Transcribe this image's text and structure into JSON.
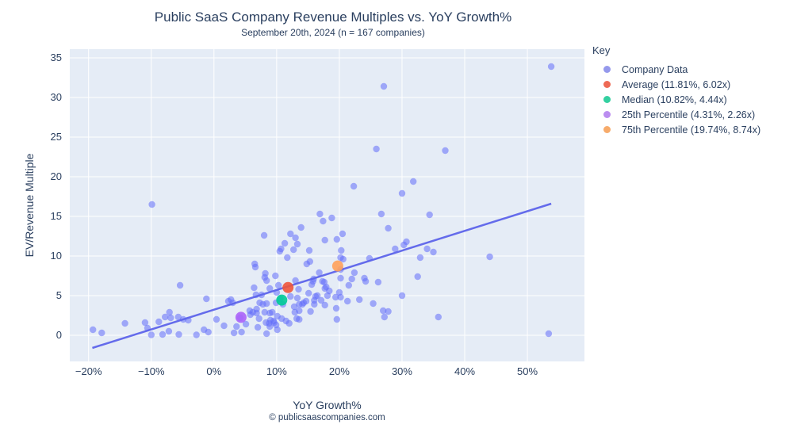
{
  "title": "Public SaaS Company Revenue Multiples vs. YoY Growth%",
  "subtitle": "September 20th, 2024 (n = 167 companies)",
  "footer": "© publicsaascompanies.com",
  "legend": {
    "title": "Key",
    "items": [
      {
        "label": "Company Data",
        "color": "#9599ec"
      },
      {
        "label": "Average (11.81%, 6.02x)",
        "color": "#ee6a55"
      },
      {
        "label": "Median (10.82%, 4.44x)",
        "color": "#34d0a0"
      },
      {
        "label": "25th Percentile (4.31%, 2.26x)",
        "color": "#bb8df0"
      },
      {
        "label": "75th Percentile (19.74%, 8.74x)",
        "color": "#f7ab6b"
      }
    ]
  },
  "chart_data": {
    "type": "scatter",
    "title": "Public SaaS Company Revenue Multiples vs. YoY Growth%",
    "subtitle": "September 20th, 2024 (n = 167 companies)",
    "xlabel": "YoY Growth%",
    "ylabel": "EV/Revenue Multiple",
    "xlim": [
      -23.0,
      59.1
    ],
    "ylim": [
      -3.3,
      36.1
    ],
    "grid": true,
    "plot_bg": "#E5ECF6",
    "grid_color": "#ffffff",
    "point_color": "#636EFA",
    "point_opacity": 0.55,
    "trend_color": "#5d64ea",
    "x_ticks": [
      {
        "value": -20,
        "label": "−20%"
      },
      {
        "value": -10,
        "label": "−10%"
      },
      {
        "value": 0,
        "label": "0%"
      },
      {
        "value": 10,
        "label": "10%"
      },
      {
        "value": 20,
        "label": "20%"
      },
      {
        "value": 30,
        "label": "30%"
      },
      {
        "value": 40,
        "label": "40%"
      },
      {
        "value": 50,
        "label": "50%"
      }
    ],
    "y_ticks": [
      {
        "value": 0,
        "label": "0"
      },
      {
        "value": 5,
        "label": "5"
      },
      {
        "value": 10,
        "label": "10"
      },
      {
        "value": 15,
        "label": "15"
      },
      {
        "value": 20,
        "label": "20"
      },
      {
        "value": 25,
        "label": "25"
      },
      {
        "value": 30,
        "label": "30"
      },
      {
        "value": 35,
        "label": "35"
      }
    ],
    "trend_line": {
      "x1": -19.4,
      "y1": -1.6,
      "x2": 53.8,
      "y2": 16.6
    },
    "special_points": [
      {
        "name": "average",
        "x": 11.81,
        "y": 6.02,
        "color": "#EF553B"
      },
      {
        "name": "median",
        "x": 10.82,
        "y": 4.44,
        "color": "#00CC96"
      },
      {
        "name": "25th-percentile",
        "x": 4.31,
        "y": 2.26,
        "color": "#AB63FA"
      },
      {
        "name": "75th-percentile",
        "x": 19.74,
        "y": 8.74,
        "color": "#FFA15A"
      }
    ],
    "points": [
      [
        -19.3,
        0.7
      ],
      [
        -17.9,
        0.3
      ],
      [
        -14.2,
        1.5
      ],
      [
        -11.0,
        1.6
      ],
      [
        -10.6,
        0.9
      ],
      [
        -10.0,
        0.05
      ],
      [
        -9.9,
        16.5
      ],
      [
        -8.8,
        1.7
      ],
      [
        -8.2,
        0.1
      ],
      [
        -7.8,
        2.3
      ],
      [
        -7.2,
        0.5
      ],
      [
        -7.1,
        2.9
      ],
      [
        -6.9,
        2.2
      ],
      [
        -5.7,
        2.3
      ],
      [
        -5.6,
        0.1
      ],
      [
        -5.4,
        6.3
      ],
      [
        -4.9,
        2.0
      ],
      [
        -4.1,
        1.9
      ],
      [
        -2.8,
        0.05
      ],
      [
        -1.6,
        0.7
      ],
      [
        -1.2,
        4.6
      ],
      [
        -0.9,
        0.4
      ],
      [
        0.4,
        2.0
      ],
      [
        1.6,
        1.2
      ],
      [
        2.3,
        4.3
      ],
      [
        2.7,
        4.5
      ],
      [
        3.0,
        4.1
      ],
      [
        3.2,
        0.3
      ],
      [
        3.6,
        1.1
      ],
      [
        4.2,
        2.2
      ],
      [
        4.4,
        0.4
      ],
      [
        5.1,
        1.4
      ],
      [
        5.7,
        3.1
      ],
      [
        5.8,
        2.6
      ],
      [
        6.2,
        2.9
      ],
      [
        6.4,
        6.0
      ],
      [
        6.7,
        5.1
      ],
      [
        6.8,
        3.3
      ],
      [
        6.8,
        2.8
      ],
      [
        7.0,
        1.0
      ],
      [
        7.2,
        2.1
      ],
      [
        7.3,
        4.1
      ],
      [
        7.6,
        5.1
      ],
      [
        7.8,
        3.9
      ],
      [
        8.1,
        7.3
      ],
      [
        8.1,
        2.9
      ],
      [
        8.3,
        1.6
      ],
      [
        8.4,
        6.9
      ],
      [
        8.4,
        4.0
      ],
      [
        8.4,
        0.2
      ],
      [
        8.8,
        1.5
      ],
      [
        8.9,
        5.9
      ],
      [
        8.9,
        2.8
      ],
      [
        8.9,
        1.1
      ],
      [
        9.0,
        1.9
      ],
      [
        9.3,
        2.9
      ],
      [
        9.5,
        1.8
      ],
      [
        9.6,
        1.6
      ],
      [
        9.9,
        4.1
      ],
      [
        9.9,
        1.3
      ],
      [
        10.0,
        5.4
      ],
      [
        10.1,
        2.4
      ],
      [
        10.1,
        0.7
      ],
      [
        10.3,
        6.3
      ],
      [
        10.6,
        4.6
      ],
      [
        10.8,
        2.1
      ],
      [
        11.0,
        3.9
      ],
      [
        11.5,
        1.8
      ],
      [
        12.0,
        1.5
      ],
      [
        12.2,
        4.9
      ],
      [
        12.8,
        3.6
      ],
      [
        12.9,
        2.9
      ],
      [
        13.0,
        6.9
      ],
      [
        13.2,
        2.1
      ],
      [
        13.3,
        4.7
      ],
      [
        13.5,
        5.8
      ],
      [
        13.6,
        3.1
      ],
      [
        13.6,
        3.9
      ],
      [
        13.6,
        2.0
      ],
      [
        14.1,
        3.9
      ],
      [
        14.3,
        4.1
      ],
      [
        14.7,
        4.3
      ],
      [
        15.1,
        5.3
      ],
      [
        15.4,
        3.0
      ],
      [
        15.6,
        6.4
      ],
      [
        15.8,
        6.8
      ],
      [
        15.9,
        7.1
      ],
      [
        16.0,
        4.4
      ],
      [
        16.0,
        3.9
      ],
      [
        16.2,
        4.9
      ],
      [
        16.5,
        5.0
      ],
      [
        17.1,
        4.4
      ],
      [
        17.3,
        6.8
      ],
      [
        17.6,
        6.7
      ],
      [
        17.7,
        5.9
      ],
      [
        17.7,
        3.8
      ],
      [
        17.9,
        6.1
      ],
      [
        18.1,
        5.0
      ],
      [
        18.4,
        5.6
      ],
      [
        19.4,
        4.8
      ],
      [
        19.5,
        3.4
      ],
      [
        19.6,
        2.0
      ],
      [
        20.0,
        5.4
      ],
      [
        20.2,
        4.8
      ],
      [
        21.3,
        4.3
      ],
      [
        21.5,
        6.3
      ],
      [
        22.4,
        7.9
      ],
      [
        23.2,
        4.5
      ],
      [
        24.2,
        6.8
      ],
      [
        6.5,
        9.0
      ],
      [
        6.6,
        8.6
      ],
      [
        8.0,
        12.6
      ],
      [
        8.2,
        7.8
      ],
      [
        9.8,
        7.5
      ],
      [
        10.5,
        10.6
      ],
      [
        10.7,
        10.9
      ],
      [
        11.3,
        11.6
      ],
      [
        11.7,
        9.8
      ],
      [
        12.2,
        12.8
      ],
      [
        12.7,
        10.8
      ],
      [
        13.0,
        12.3
      ],
      [
        13.3,
        11.5
      ],
      [
        13.9,
        13.6
      ],
      [
        14.8,
        9.0
      ],
      [
        15.2,
        10.7
      ],
      [
        15.3,
        9.3
      ],
      [
        16.8,
        7.9
      ],
      [
        16.9,
        15.3
      ],
      [
        17.4,
        14.4
      ],
      [
        17.7,
        12.0
      ],
      [
        18.8,
        14.8
      ],
      [
        19.6,
        12.1
      ],
      [
        20.2,
        9.8
      ],
      [
        20.2,
        8.3
      ],
      [
        20.2,
        7.2
      ],
      [
        20.3,
        10.7
      ],
      [
        20.5,
        12.8
      ],
      [
        20.6,
        9.6
      ],
      [
        22.0,
        7.1
      ],
      [
        24.0,
        7.2
      ],
      [
        24.8,
        9.7
      ],
      [
        25.4,
        4.0
      ],
      [
        26.2,
        6.7
      ],
      [
        26.7,
        15.3
      ],
      [
        27.0,
        3.1
      ],
      [
        27.2,
        2.3
      ],
      [
        27.8,
        13.5
      ],
      [
        27.8,
        3.0
      ],
      [
        28.9,
        10.9
      ],
      [
        30.0,
        17.9
      ],
      [
        30.0,
        5.0
      ],
      [
        30.3,
        11.4
      ],
      [
        30.7,
        11.8
      ],
      [
        32.5,
        7.4
      ],
      [
        32.9,
        9.8
      ],
      [
        34.0,
        10.9
      ],
      [
        34.4,
        15.2
      ],
      [
        35.0,
        10.5
      ],
      [
        35.8,
        2.3
      ],
      [
        22.3,
        18.8
      ],
      [
        25.9,
        23.5
      ],
      [
        27.1,
        31.4
      ],
      [
        31.8,
        19.4
      ],
      [
        36.9,
        23.3
      ],
      [
        44.0,
        9.9
      ],
      [
        53.4,
        0.2
      ],
      [
        53.8,
        33.9
      ]
    ]
  }
}
